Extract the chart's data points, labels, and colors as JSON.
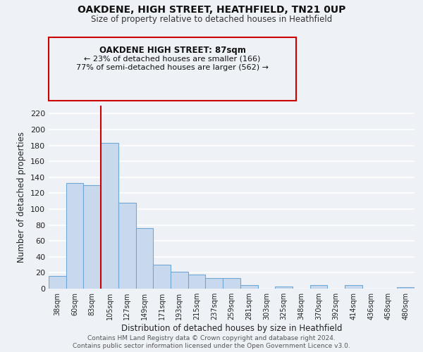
{
  "title": "OAKDENE, HIGH STREET, HEATHFIELD, TN21 0UP",
  "subtitle": "Size of property relative to detached houses in Heathfield",
  "xlabel": "Distribution of detached houses by size in Heathfield",
  "ylabel": "Number of detached properties",
  "bar_color": "#c8d9ed",
  "bar_edge_color": "#6fa8d4",
  "categories": [
    "38sqm",
    "60sqm",
    "83sqm",
    "105sqm",
    "127sqm",
    "149sqm",
    "171sqm",
    "193sqm",
    "215sqm",
    "237sqm",
    "259sqm",
    "281sqm",
    "303sqm",
    "325sqm",
    "348sqm",
    "370sqm",
    "392sqm",
    "414sqm",
    "436sqm",
    "458sqm",
    "480sqm"
  ],
  "values": [
    16,
    133,
    130,
    183,
    108,
    76,
    30,
    21,
    18,
    13,
    13,
    4,
    0,
    3,
    0,
    4,
    0,
    4,
    0,
    0,
    2
  ],
  "ylim": [
    0,
    230
  ],
  "yticks": [
    0,
    20,
    40,
    60,
    80,
    100,
    120,
    140,
    160,
    180,
    200,
    220
  ],
  "vline_index": 2,
  "vline_color": "#cc0000",
  "annotation_title": "OAKDENE HIGH STREET: 87sqm",
  "annotation_line1": "← 23% of detached houses are smaller (166)",
  "annotation_line2": "77% of semi-detached houses are larger (562) →",
  "footer1": "Contains HM Land Registry data © Crown copyright and database right 2024.",
  "footer2": "Contains public sector information licensed under the Open Government Licence v3.0.",
  "background_color": "#eef2f7",
  "grid_color": "#ffffff"
}
